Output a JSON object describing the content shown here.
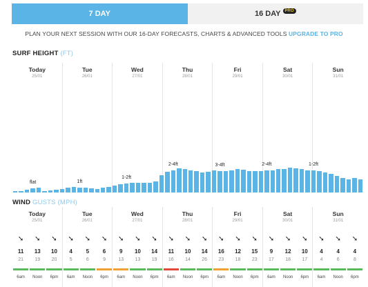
{
  "tabs": [
    {
      "label": "7 DAY",
      "active": true
    },
    {
      "label": "16 DAY",
      "badge": "PRO",
      "active": false
    }
  ],
  "promo": {
    "text": "PLAN YOUR NEXT SESSION WITH OUR 16-DAY FORECASTS, CHARTS & ADVANCED TOOLS",
    "link": "UPGRADE TO PRO"
  },
  "surf": {
    "title": "SURF HEIGHT",
    "unit": "(FT)",
    "max_ft": 6,
    "heights": [
      0.15,
      0.18,
      0.35,
      0.45,
      0.55,
      0.12,
      0.22,
      0.32,
      0.42,
      0.55,
      0.65,
      0.6,
      0.55,
      0.5,
      0.42,
      0.55,
      0.68,
      0.82,
      0.95,
      1.05,
      1.15,
      1.12,
      1.1,
      1.15,
      1.3,
      2.0,
      2.4,
      2.6,
      2.8,
      2.75,
      2.6,
      2.45,
      2.3,
      2.4,
      2.55,
      2.5,
      2.45,
      2.55,
      2.75,
      2.65,
      2.5,
      2.45,
      2.5,
      2.55,
      2.6,
      2.7,
      2.75,
      2.85,
      2.8,
      2.7,
      2.55,
      2.6,
      2.5,
      2.35,
      2.2,
      1.9,
      1.65,
      1.5,
      1.7,
      1.55
    ],
    "labels": [
      {
        "text": "flat",
        "bar": 3
      },
      {
        "text": "1ft",
        "bar": 11
      },
      {
        "text": "1-2ft",
        "bar": 19
      },
      {
        "text": "2-4ft",
        "bar": 27
      },
      {
        "text": "3-4ft",
        "bar": 35
      },
      {
        "text": "2-4ft",
        "bar": 43
      },
      {
        "text": "1-2ft",
        "bar": 51
      }
    ]
  },
  "days": [
    {
      "name": "Today",
      "date": "25/01"
    },
    {
      "name": "Tue",
      "date": "26/01"
    },
    {
      "name": "Wed",
      "date": "27/01"
    },
    {
      "name": "Thu",
      "date": "28/01"
    },
    {
      "name": "Fri",
      "date": "29/01"
    },
    {
      "name": "Sat",
      "date": "30/01"
    },
    {
      "name": "Sun",
      "date": "31/01"
    }
  ],
  "wind": {
    "title": "WIND",
    "gusts_label": "GUSTS",
    "unit": "(MPH)",
    "times": [
      "6am",
      "Noon",
      "6pm"
    ],
    "colors": {
      "green": "#5cb85c",
      "orange": "#f0a030",
      "red": "#e04a3a"
    },
    "cells": [
      {
        "arrow": "➘",
        "speed": "11",
        "gust": "21",
        "color": "green"
      },
      {
        "arrow": "➘",
        "speed": "13",
        "gust": "19",
        "color": "green"
      },
      {
        "arrow": "➘",
        "speed": "10",
        "gust": "20",
        "color": "green"
      },
      {
        "arrow": "➘",
        "speed": "4",
        "gust": "5",
        "color": "green"
      },
      {
        "arrow": "➘",
        "speed": "5",
        "gust": "6",
        "color": "green"
      },
      {
        "arrow": "➘",
        "speed": "6",
        "gust": "9",
        "color": "orange"
      },
      {
        "arrow": "➘",
        "speed": "9",
        "gust": "13",
        "color": "orange"
      },
      {
        "arrow": "➘",
        "speed": "10",
        "gust": "13",
        "color": "green"
      },
      {
        "arrow": "➘",
        "speed": "14",
        "gust": "19",
        "color": "green"
      },
      {
        "arrow": "➘",
        "speed": "11",
        "gust": "16",
        "color": "red"
      },
      {
        "arrow": "➘",
        "speed": "10",
        "gust": "14",
        "color": "green"
      },
      {
        "arrow": "➘",
        "speed": "14",
        "gust": "26",
        "color": "green"
      },
      {
        "arrow": "➘",
        "speed": "16",
        "gust": "23",
        "color": "orange"
      },
      {
        "arrow": "➘",
        "speed": "12",
        "gust": "18",
        "color": "green"
      },
      {
        "arrow": "➘",
        "speed": "15",
        "gust": "23",
        "color": "green"
      },
      {
        "arrow": "➘",
        "speed": "9",
        "gust": "17",
        "color": "green"
      },
      {
        "arrow": "➘",
        "speed": "12",
        "gust": "18",
        "color": "green"
      },
      {
        "arrow": "➘",
        "speed": "10",
        "gust": "17",
        "color": "green"
      },
      {
        "arrow": "➘",
        "speed": "4",
        "gust": "4",
        "color": "green"
      },
      {
        "arrow": "➘",
        "speed": "4",
        "gust": "6",
        "color": "green"
      },
      {
        "arrow": "➘",
        "speed": "4",
        "gust": "8",
        "color": "green"
      }
    ]
  }
}
